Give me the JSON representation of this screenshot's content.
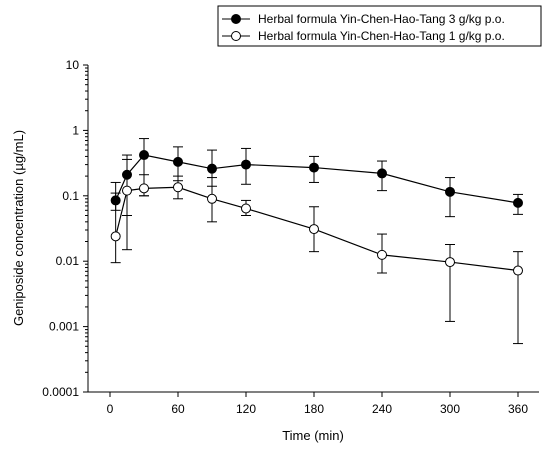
{
  "chart_data": {
    "type": "line",
    "title": "",
    "xlabel": "Time (min)",
    "ylabel": "Geniposide concentration (µg/mL)",
    "xlim": [
      -20,
      380
    ],
    "ylim": [
      0.0001,
      10
    ],
    "yscale": "log",
    "x_ticks": [
      "0",
      "60",
      "120",
      "180",
      "240",
      "300",
      "360"
    ],
    "y_ticks": [
      "0.0001",
      "0.001",
      "0.01",
      "0.1",
      "1",
      "10"
    ],
    "grid": false,
    "legend_position": "top-right",
    "series": [
      {
        "name": "Herbal formula Yin-Chen-Hao-Tang 3 g/kg p.o.",
        "marker": "filled-circle",
        "color": "#000000",
        "x": [
          5,
          15,
          30,
          60,
          90,
          120,
          180,
          240,
          300,
          360
        ],
        "y": [
          0.085,
          0.21,
          0.42,
          0.33,
          0.26,
          0.3,
          0.27,
          0.22,
          0.115,
          0.078
        ],
        "err_low": [
          0.06,
          0.05,
          0.1,
          0.17,
          0.14,
          0.15,
          0.16,
          0.12,
          0.048,
          0.052
        ],
        "err_high": [
          0.16,
          0.42,
          0.75,
          0.56,
          0.5,
          0.53,
          0.4,
          0.34,
          0.19,
          0.105
        ]
      },
      {
        "name": "Herbal formula Yin-Chen-Hao-Tang 1 g/kg p.o.",
        "marker": "open-circle",
        "color": "#000000",
        "x": [
          5,
          15,
          30,
          60,
          90,
          120,
          180,
          240,
          300,
          360
        ],
        "y": [
          0.024,
          0.12,
          0.13,
          0.135,
          0.09,
          0.064,
          0.031,
          0.0125,
          0.0097,
          0.0072
        ],
        "err_low": [
          0.0095,
          0.015,
          0.1,
          0.09,
          0.04,
          0.05,
          0.014,
          0.0066,
          0.0012,
          0.00055
        ],
        "err_high": [
          0.11,
          0.36,
          0.21,
          0.2,
          0.19,
          0.085,
          0.068,
          0.026,
          0.018,
          0.014
        ]
      }
    ]
  }
}
